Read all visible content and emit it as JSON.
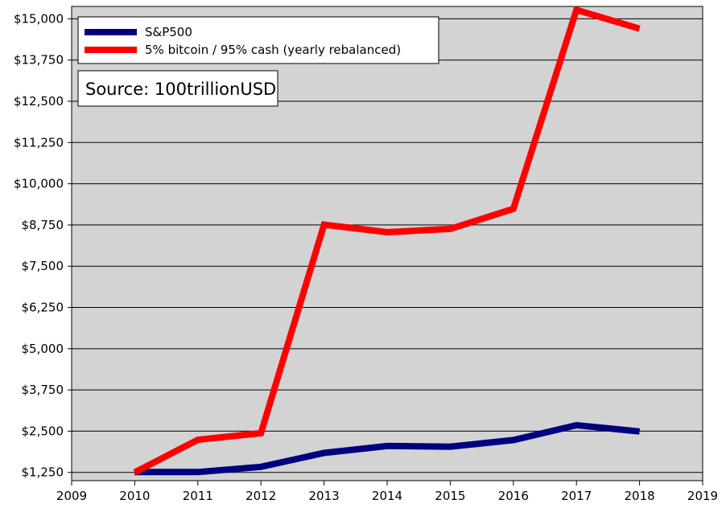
{
  "chart_data": {
    "type": "line",
    "title": "",
    "xlabel": "",
    "ylabel": "",
    "xlim": [
      2009,
      2019
    ],
    "ylim": [
      1000,
      15375
    ],
    "x_ticks": [
      2009,
      2010,
      2011,
      2012,
      2013,
      2014,
      2015,
      2016,
      2017,
      2018,
      2019
    ],
    "y_ticks": [
      1250,
      2500,
      3750,
      5000,
      6250,
      7500,
      8750,
      10000,
      11250,
      12500,
      13750,
      15000
    ],
    "y_tick_labels": [
      "$1,250",
      "$2,500",
      "$3,750",
      "$5,000",
      "$6,250",
      "$7,500",
      "$8,750",
      "$10,000",
      "$11,250",
      "$12,500",
      "$13,750",
      "$15,000"
    ],
    "grid": "horizontal",
    "plot_background": "#d3d3d3",
    "legend_position": "top-left",
    "series": [
      {
        "name": "S&P500",
        "color": "#000080",
        "x": [
          2010,
          2011,
          2012,
          2013,
          2014,
          2015,
          2016,
          2017,
          2018
        ],
        "y": [
          1260,
          1260,
          1420,
          1840,
          2050,
          2030,
          2230,
          2680,
          2490
        ]
      },
      {
        "name": "5% bitcoin / 95% cash (yearly rebalanced)",
        "color": "#ff0000",
        "x": [
          2010,
          2011,
          2012,
          2013,
          2014,
          2015,
          2016,
          2017,
          2018
        ],
        "y": [
          1250,
          2240,
          2440,
          8760,
          8530,
          8630,
          9240,
          15270,
          14700
        ]
      }
    ],
    "annotations": [
      {
        "text": "Source: 100trillionUSD",
        "position": "top-left"
      }
    ]
  }
}
